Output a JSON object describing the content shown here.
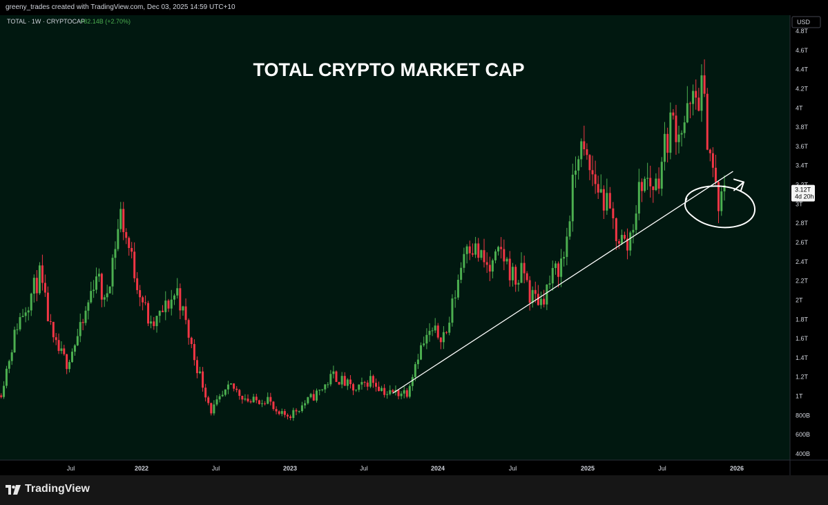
{
  "header": {
    "credit": "greeny_trades created with TradingView.com, Dec 03, 2025 14:59 UTC+10"
  },
  "legend": {
    "symbol": "TOTAL · 1W · CRYPTOCAP",
    "change": "+82.14B (+2.70%)"
  },
  "currency": "USD",
  "price_label": {
    "price": "3.12T",
    "countdown": "4d 20h"
  },
  "footer": {
    "brand": "TradingView"
  },
  "colors": {
    "background": "#011810",
    "up": "#4caf50",
    "down": "#f23645",
    "axis_text": "#d1d4dc",
    "trendline": "#ffffff",
    "change_green": "#4caf50"
  },
  "chart_data": {
    "type": "candlestick",
    "title": "TOTAL CRYPTO MARKET CAP",
    "xlabel": "",
    "ylabel": "",
    "ylim": [
      0.35,
      4.95
    ],
    "x_tick_labels": [
      {
        "label": "Jul",
        "date": "2021-07"
      },
      {
        "label": "2022",
        "date": "2022-01"
      },
      {
        "label": "Jul",
        "date": "2022-07"
      },
      {
        "label": "2023",
        "date": "2023-01"
      },
      {
        "label": "Jul",
        "date": "2023-07"
      },
      {
        "label": "2024",
        "date": "2024-01"
      },
      {
        "label": "Jul",
        "date": "2024-07"
      },
      {
        "label": "2025",
        "date": "2025-01"
      },
      {
        "label": "Jul",
        "date": "2025-07"
      },
      {
        "label": "2026",
        "date": "2026-01"
      }
    ],
    "y_tick_labels": [
      {
        "label": "400B",
        "value": 0.4
      },
      {
        "label": "600B",
        "value": 0.6
      },
      {
        "label": "800B",
        "value": 0.8
      },
      {
        "label": "1T",
        "value": 1.0
      },
      {
        "label": "1.2T",
        "value": 1.2
      },
      {
        "label": "1.4T",
        "value": 1.4
      },
      {
        "label": "1.6T",
        "value": 1.6
      },
      {
        "label": "1.8T",
        "value": 1.8
      },
      {
        "label": "2T",
        "value": 2.0
      },
      {
        "label": "2.2T",
        "value": 2.2
      },
      {
        "label": "2.4T",
        "value": 2.4
      },
      {
        "label": "2.6T",
        "value": 2.6
      },
      {
        "label": "2.8T",
        "value": 2.8
      },
      {
        "label": "3T",
        "value": 3.0
      },
      {
        "label": "3.2T",
        "value": 3.2
      },
      {
        "label": "3.4T",
        "value": 3.4
      },
      {
        "label": "3.6T",
        "value": 3.6
      },
      {
        "label": "3.8T",
        "value": 3.8
      },
      {
        "label": "4T",
        "value": 4.0
      },
      {
        "label": "4.2T",
        "value": 4.2
      },
      {
        "label": "4.4T",
        "value": 4.4
      },
      {
        "label": "4.6T",
        "value": 4.6
      },
      {
        "label": "4.8T",
        "value": 4.8
      }
    ],
    "weekly_close_path": [
      {
        "date": "2021-01-04",
        "close": 1.05
      },
      {
        "date": "2021-02-15",
        "close": 1.75
      },
      {
        "date": "2021-04-12",
        "close": 2.25
      },
      {
        "date": "2021-05-17",
        "close": 1.55
      },
      {
        "date": "2021-06-21",
        "close": 1.35
      },
      {
        "date": "2021-08-02",
        "close": 1.75
      },
      {
        "date": "2021-09-06",
        "close": 2.3
      },
      {
        "date": "2021-09-27",
        "close": 1.95
      },
      {
        "date": "2021-11-08",
        "close": 2.9
      },
      {
        "date": "2021-12-13",
        "close": 2.3
      },
      {
        "date": "2022-01-24",
        "close": 1.7
      },
      {
        "date": "2022-03-28",
        "close": 2.1
      },
      {
        "date": "2022-05-09",
        "close": 1.4
      },
      {
        "date": "2022-06-20",
        "close": 0.85
      },
      {
        "date": "2022-08-08",
        "close": 1.1
      },
      {
        "date": "2022-09-26",
        "close": 0.94
      },
      {
        "date": "2022-11-07",
        "close": 0.98
      },
      {
        "date": "2022-11-28",
        "close": 0.8
      },
      {
        "date": "2023-01-02",
        "close": 0.81
      },
      {
        "date": "2023-03-13",
        "close": 1.05
      },
      {
        "date": "2023-04-17",
        "close": 1.22
      },
      {
        "date": "2023-06-12",
        "close": 1.05
      },
      {
        "date": "2023-07-17",
        "close": 1.18
      },
      {
        "date": "2023-08-28",
        "close": 1.03
      },
      {
        "date": "2023-10-16",
        "close": 1.05
      },
      {
        "date": "2023-11-13",
        "close": 1.45
      },
      {
        "date": "2023-12-11",
        "close": 1.65
      },
      {
        "date": "2024-01-22",
        "close": 1.65
      },
      {
        "date": "2024-03-11",
        "close": 2.65
      },
      {
        "date": "2024-05-06",
        "close": 2.3
      },
      {
        "date": "2024-06-03",
        "close": 2.5
      },
      {
        "date": "2024-07-08",
        "close": 2.2
      },
      {
        "date": "2024-07-29",
        "close": 2.3
      },
      {
        "date": "2024-08-12",
        "close": 2.05
      },
      {
        "date": "2024-09-09",
        "close": 2.0
      },
      {
        "date": "2024-10-14",
        "close": 2.3
      },
      {
        "date": "2024-11-04",
        "close": 2.45
      },
      {
        "date": "2024-12-09",
        "close": 3.6
      },
      {
        "date": "2025-01-06",
        "close": 3.35
      },
      {
        "date": "2025-02-10",
        "close": 3.05
      },
      {
        "date": "2025-03-10",
        "close": 2.7
      },
      {
        "date": "2025-04-07",
        "close": 2.55
      },
      {
        "date": "2025-05-12",
        "close": 3.25
      },
      {
        "date": "2025-06-16",
        "close": 3.2
      },
      {
        "date": "2025-07-21",
        "close": 3.85
      },
      {
        "date": "2025-08-18",
        "close": 3.8
      },
      {
        "date": "2025-10-06",
        "close": 4.2
      },
      {
        "date": "2025-10-20",
        "close": 3.75
      },
      {
        "date": "2025-11-17",
        "close": 2.95
      },
      {
        "date": "2025-12-01",
        "close": 3.12
      }
    ],
    "annotations": [
      {
        "type": "trendline",
        "from": {
          "date": "2023-09-11",
          "value": 1.03
        },
        "to": {
          "date": "2025-12-22",
          "value": 3.34
        }
      },
      {
        "type": "ellipse",
        "center": {
          "date": "2025-11-24",
          "value": 2.96
        }
      },
      {
        "type": "arrow",
        "pointing_to": {
          "date": "2025-12-01",
          "value": 3.2
        }
      }
    ]
  }
}
